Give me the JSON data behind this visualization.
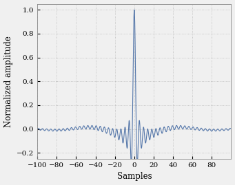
{
  "xlim": [
    -100,
    100
  ],
  "ylim": [
    -0.25,
    1.05
  ],
  "xticks": [
    -100,
    -80,
    -60,
    -40,
    -20,
    0,
    20,
    40,
    60,
    80
  ],
  "yticks": [
    -0.2,
    0,
    0.2,
    0.4,
    0.6,
    0.8,
    1
  ],
  "xlabel": "Samples",
  "ylabel": "Normalized amplitude",
  "line_color": "#5577AA",
  "line_width": 0.8,
  "grid_color": "#BBBBBB",
  "grid_linestyle": ":",
  "background_color": "#F0F0F0",
  "carrier_freq": 0.125,
  "bandwidth": 0.22,
  "figsize": [
    3.41,
    2.69
  ],
  "dpi": 100
}
